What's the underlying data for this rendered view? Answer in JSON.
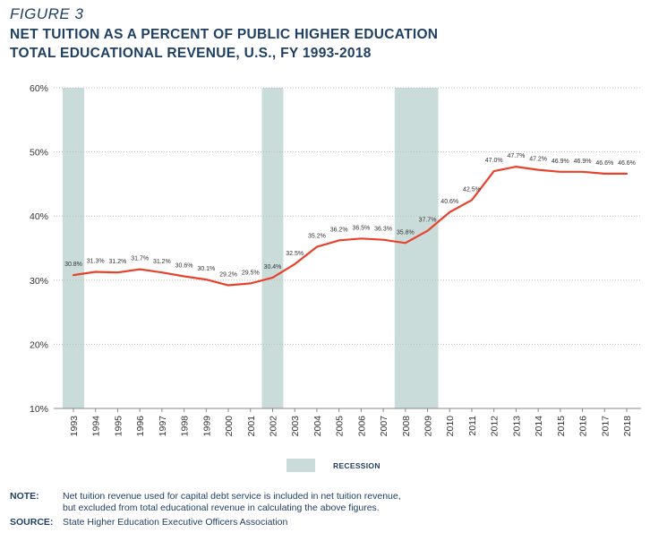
{
  "figure_label": "FIGURE 3",
  "title_line1": "NET TUITION AS A PERCENT OF PUBLIC HIGHER EDUCATION",
  "title_line2": "TOTAL EDUCATIONAL REVENUE, U.S., FY 1993-2018",
  "legend": {
    "recession_label": "RECESSION"
  },
  "note": {
    "key": "NOTE:",
    "line1": "Net tuition revenue used for capital debt service is included in net tuition revenue,",
    "line2": "but excluded from total educational revenue in calculating the above figures."
  },
  "source": {
    "key": "SOURCE:",
    "text": "State Higher Education Executive Officers Association"
  },
  "colors": {
    "line": "#e8412c",
    "recession": "#c9dcda",
    "text": "#1f3f63"
  },
  "chart_data": {
    "type": "line",
    "title": "NET TUITION AS A PERCENT OF PUBLIC HIGHER EDUCATION TOTAL EDUCATIONAL REVENUE, U.S., FY 1993-2018",
    "categories": [
      "1993",
      "1994",
      "1995",
      "1996",
      "1997",
      "1998",
      "1999",
      "2000",
      "2001",
      "2002",
      "2003",
      "2004",
      "2005",
      "2006",
      "2007",
      "2008",
      "2009",
      "2010",
      "2011",
      "2012",
      "2013",
      "2014",
      "2015",
      "2016",
      "2017",
      "2018"
    ],
    "series": [
      {
        "values": [
          30.8,
          31.3,
          31.2,
          31.7,
          31.2,
          30.6,
          30.1,
          29.2,
          29.5,
          30.4,
          32.5,
          35.2,
          36.2,
          36.5,
          36.3,
          35.8,
          37.7,
          40.6,
          42.5,
          47.0,
          47.7,
          47.2,
          46.9,
          46.9,
          46.6,
          46.6
        ],
        "labels": [
          "30.8%",
          "31.3%",
          "31.2%",
          "31.7%",
          "31.2%",
          "30.6%",
          "30.1%",
          "29.2%",
          "29.5%",
          "30.4%",
          "32.5%",
          "35.2%",
          "36.2%",
          "36.5%",
          "36.3%",
          "35.8%",
          "37.7%",
          "40.6%",
          "42.5%",
          "47.0%",
          "47.7%",
          "47.2%",
          "46.9%",
          "46.9%",
          "46.6%",
          "46.6%"
        ]
      }
    ],
    "ylim": [
      10,
      60
    ],
    "yticks": [
      10,
      20,
      30,
      40,
      50,
      60
    ],
    "ytick_labels": [
      "10%",
      "20%",
      "30%",
      "40%",
      "50%",
      "60%"
    ],
    "grid": true,
    "recessions": [
      {
        "start": "1993",
        "end": "1993"
      },
      {
        "start": "2002",
        "end": "2002"
      },
      {
        "start": "2008",
        "end": "2009"
      }
    ]
  }
}
